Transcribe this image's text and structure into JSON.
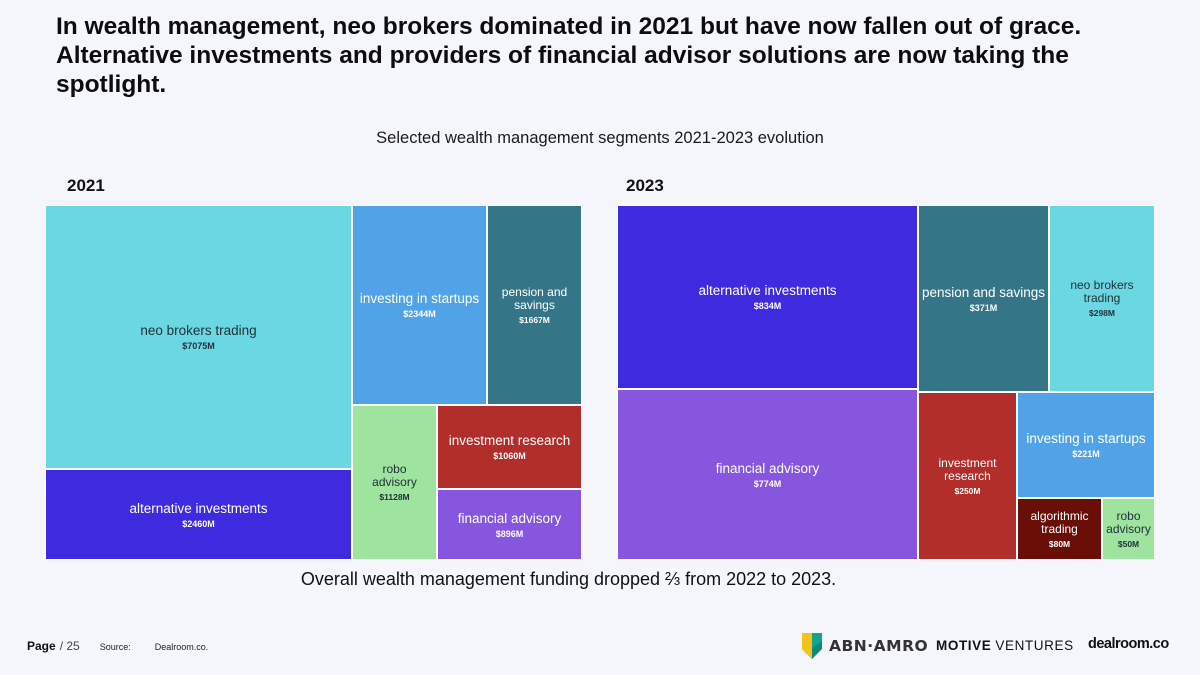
{
  "headline": "In wealth management, neo brokers dominated in 2021 but have now fallen out of grace. Alternative investments and providers of financial advisor solutions are now taking the spotlight.",
  "colors": {
    "neo_brokers": "#6ad7e3",
    "alternative_investments": "#3e2be0",
    "investing_in_startups": "#4fa3e6",
    "pension_and_savings": "#347687",
    "robo_advisory": "#9ee49f",
    "investment_research": "#b22e2b",
    "financial_advisory": "#8656df",
    "algorithmic_trading": "#6a0f08"
  },
  "chart_data": {
    "type": "treemap",
    "title": "Selected wealth management segments 2021-2023 evolution",
    "panels": [
      {
        "year": "2021",
        "items": [
          {
            "label": "neo brokers trading",
            "value": 7075,
            "value_label": "$7075M"
          },
          {
            "label": "alternative investments",
            "value": 2460,
            "value_label": "$2460M"
          },
          {
            "label": "investing in startups",
            "value": 2344,
            "value_label": "$2344M"
          },
          {
            "label": "pension and savings",
            "value": 1667,
            "value_label": "$1667M"
          },
          {
            "label": "robo advisory",
            "value": 1128,
            "value_label": "$1128M"
          },
          {
            "label": "investment research",
            "value": 1060,
            "value_label": "$1060M"
          },
          {
            "label": "financial advisory",
            "value": 896,
            "value_label": "$896M"
          }
        ]
      },
      {
        "year": "2023",
        "items": [
          {
            "label": "alternative investments",
            "value": 834,
            "value_label": "$834M"
          },
          {
            "label": "financial advisory",
            "value": 774,
            "value_label": "$774M"
          },
          {
            "label": "pension and savings",
            "value": 371,
            "value_label": "$371M"
          },
          {
            "label": "neo brokers trading",
            "value": 298,
            "value_label": "$298M"
          },
          {
            "label": "investment research",
            "value": 250,
            "value_label": "$250M"
          },
          {
            "label": "investing in startups",
            "value": 221,
            "value_label": "$221M"
          },
          {
            "label": "algorithmic trading",
            "value": 80,
            "value_label": "$80M"
          },
          {
            "label": "robo advisory",
            "value": 50,
            "value_label": "$50M"
          }
        ]
      }
    ]
  },
  "footnote": "Overall wealth management funding dropped ⅔ from 2022 to 2023.",
  "footer": {
    "page_word": "Page",
    "page_total": "/ 25",
    "source_label": "Source:",
    "source_value": "Dealroom.co."
  },
  "logos": {
    "abn_amro": "ABN·AMRO",
    "motive_bold": "MOTIVE",
    "motive_regular": "VENTURES",
    "dealroom": "dealroom.co"
  }
}
